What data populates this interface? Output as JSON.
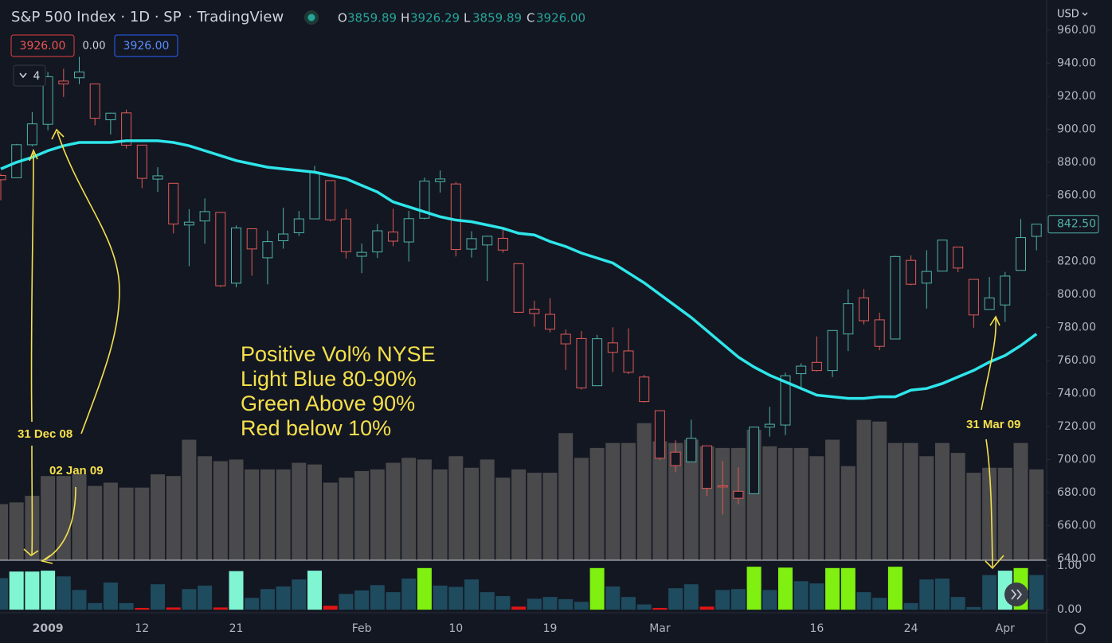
{
  "header": {
    "title": "S&P 500 Index · 1D · SP",
    "source": "· TradingView",
    "ohlc": [
      {
        "label": "O",
        "value": "3859.89"
      },
      {
        "label": "H",
        "value": "3926.29"
      },
      {
        "label": "L",
        "value": "3859.89"
      },
      {
        "label": "C",
        "value": "3926.00"
      }
    ],
    "inputs": [
      "3926.00",
      "0.00",
      "3926.00"
    ],
    "indicator_count": "4",
    "currency": "USD"
  },
  "chart_data": [
    {
      "type": "candlestick",
      "up_color": "#4fb3a8",
      "down_color": "#e05a57",
      "categories": [
        null,
        null,
        null,
        "2009",
        null,
        null,
        null,
        null,
        null,
        "12",
        null,
        null,
        null,
        null,
        null,
        "21",
        null,
        null,
        null,
        null,
        null,
        null,
        null,
        "Feb",
        null,
        null,
        null,
        null,
        null,
        "10",
        null,
        null,
        null,
        null,
        null,
        "19",
        null,
        null,
        null,
        null,
        null,
        null,
        "Mar",
        null,
        null,
        null,
        null,
        null,
        null,
        null,
        null,
        null,
        "16",
        null,
        null,
        null,
        null,
        null,
        "24",
        null,
        null,
        null,
        null,
        null,
        "Apr",
        null,
        null
      ],
      "open": [
        872,
        870.58,
        890.59,
        902.99,
        929.17,
        931.17,
        927.45,
        905.73,
        909.91,
        890.4,
        869.79,
        867.28,
        841.99,
        844.45,
        849.64,
        806.77,
        839.74,
        822.16,
        832.5,
        837.3,
        845.73,
        868.89,
        845.69,
        823.09,
        825.69,
        837.77,
        831.75,
        846.09,
        868.24,
        866.87,
        827.41,
        829.91,
        833.95,
        818.61,
        791.06,
        787.91,
        775.87,
        773.25,
        744.69,
        770.64,
        765.76,
        749.93,
        729.57,
        704.44,
        698.6,
        708.27,
        684.04,
        680.76,
        679.28,
        719.59,
        720.89,
        751.97,
        758.84,
        753.88,
        776.01,
        797.92,
        784.58,
        772.97,
        820.6,
        806.81,
        814.06,
        828.68,
        809.07,
        790.88,
        793.59,
        814.53,
        835.13
      ],
      "high": [
        873,
        891.12,
        910.32,
        934.73,
        936.63,
        943.85,
        927.45,
        910.0,
        911.93,
        890.4,
        877.02,
        867.28,
        851.59,
        858.13,
        849.64,
        841.72,
        839.74,
        838.61,
        852.53,
        850.45,
        877.86,
        868.89,
        851.66,
        830.78,
        842.6,
        851.85,
        850.55,
        870.75,
        875.01,
        868.05,
        838.22,
        835.48,
        839.43,
        818.61,
        796.17,
        797.58,
        778.69,
        777.85,
        775.49,
        780.12,
        779.42,
        751.27,
        729.57,
        711.67,
        724.12,
        708.27,
        699.09,
        695.27,
        719.6,
        731.92,
        752.63,
        758.29,
        774.53,
        778.12,
        803.04,
        803.24,
        788.91,
        823.37,
        823.65,
        826.78,
        832.98,
        828.68,
        809.07,
        810.48,
        813.62,
        845.61,
        842.5
      ],
      "low": [
        857,
        870.58,
        889.67,
        899.35,
        919.53,
        927.28,
        902.37,
        896.81,
        888.31,
        864.32,
        862.02,
        836.93,
        817.04,
        830.66,
        804.47,
        804.3,
        811.29,
        806.07,
        827.69,
        835.4,
        845.73,
        844.15,
        821.67,
        812.87,
        821.98,
        829.18,
        819.91,
        845.42,
        861.65,
        822.99,
        822.3,
        808.06,
        825.21,
        789.17,
        780.43,
        777.03,
        754.25,
        742.37,
        744.69,
        752.89,
        751.75,
        734.52,
        699.7,
        692.3,
        698.6,
        677.93,
        666.79,
        672.88,
        679.28,
        713.85,
        714.76,
        742.46,
        753.37,
        749.93,
        765.64,
        781.82,
        766.2,
        772.97,
        805.48,
        791.37,
        814.06,
        813.43,
        779.81,
        790.88,
        783.32,
        814.53,
        826.7
      ],
      "close": [
        869.42,
        890.64,
        903.25,
        931.8,
        927.45,
        934.7,
        906.65,
        909.73,
        890.35,
        870.26,
        871.79,
        842.62,
        843.74,
        850.12,
        805.22,
        840.24,
        827.5,
        831.95,
        836.57,
        845.71,
        874.09,
        845.14,
        825.88,
        825.44,
        838.51,
        832.23,
        845.85,
        868.6,
        869.89,
        827.16,
        833.74,
        835.19,
        826.84,
        789.17,
        788.42,
        778.94,
        770.05,
        743.33,
        773.14,
        764.9,
        752.83,
        735.09,
        700.82,
        696.33,
        712.87,
        682.55,
        683.38,
        676.53,
        719.6,
        721.36,
        750.74,
        756.55,
        753.89,
        778.12,
        794.35,
        784.04,
        768.54,
        822.92,
        806.12,
        813.88,
        832.86,
        815.94,
        787.53,
        797.87,
        811.08,
        834.38,
        842.5
      ],
      "ma": {
        "color": "#2ee6ea",
        "values": [
          876,
          880,
          883,
          887,
          890,
          892,
          892,
          892,
          893,
          893,
          893,
          892,
          890,
          887,
          884,
          881,
          879,
          877,
          876,
          875,
          874,
          872,
          870,
          866,
          862,
          856,
          853,
          850,
          847,
          845,
          844,
          842,
          840,
          837,
          836,
          832,
          829,
          825,
          822,
          819,
          813,
          807,
          800,
          793,
          786,
          778,
          770,
          762,
          756,
          751,
          747,
          743,
          739,
          738,
          737,
          737,
          738,
          738,
          742,
          743,
          746,
          750,
          754,
          759,
          763,
          769,
          776
        ]
      },
      "volume": {
        "color": "#4a4a4c",
        "values": [
          673,
          674,
          678,
          690,
          690,
          691,
          684,
          686,
          683,
          683,
          691,
          690,
          712,
          702,
          699,
          700,
          694,
          694,
          694,
          698,
          697,
          686,
          689,
          693,
          694,
          698,
          701,
          700,
          694,
          702,
          695,
          700,
          689,
          694,
          692,
          692,
          716,
          701,
          707,
          710,
          710,
          722,
          711,
          710,
          712,
          708,
          707,
          707,
          718,
          708,
          707,
          707,
          702,
          712,
          696,
          724,
          723,
          710,
          710,
          702,
          710,
          704,
          692,
          695,
          695,
          710,
          694
        ]
      },
      "ylim": [
        639,
        977.3
      ],
      "yticks": [
        {
          "value": 960,
          "label": "960.00"
        },
        {
          "value": 940,
          "label": "940.00"
        },
        {
          "value": 920,
          "label": "920.00"
        },
        {
          "value": 900,
          "label": "900.00"
        },
        {
          "value": 880,
          "label": "880.00"
        },
        {
          "value": 860,
          "label": "860.00"
        },
        {
          "value": 840,
          "label": "840.00"
        },
        {
          "value": 820,
          "label": "820.00"
        },
        {
          "value": 800,
          "label": "800.00"
        },
        {
          "value": 780,
          "label": "780.00"
        },
        {
          "value": 760,
          "label": "760.00"
        },
        {
          "value": 740,
          "label": "740.00"
        },
        {
          "value": 720,
          "label": "720.00"
        },
        {
          "value": 700,
          "label": "700.00"
        },
        {
          "value": 680,
          "label": "680.00"
        },
        {
          "value": 660,
          "label": "660.00"
        },
        {
          "value": 640,
          "label": "640.00"
        }
      ],
      "last_price": {
        "value": 842.5,
        "label": "842.50"
      },
      "annotations": [
        "Positive Vol% NYSE",
        "Light Blue 80-90%",
        "Green Above 90%",
        "Red below 10%"
      ],
      "date_notes": [
        "31 Dec 08",
        "02 Jan 09",
        "31 Mar 09"
      ]
    },
    {
      "type": "bar",
      "values": [
        0.72,
        0.87,
        0.87,
        0.89,
        0.76,
        0.45,
        0.15,
        0.62,
        0.15,
        0.04,
        0.58,
        0.05,
        0.47,
        0.55,
        0.05,
        0.88,
        0.27,
        0.47,
        0.53,
        0.69,
        0.89,
        0.09,
        0.36,
        0.44,
        0.56,
        0.4,
        0.71,
        0.95,
        0.55,
        0.52,
        0.69,
        0.4,
        0.31,
        0.07,
        0.25,
        0.29,
        0.24,
        0.18,
        0.95,
        0.53,
        0.29,
        0.12,
        0.04,
        0.49,
        0.58,
        0.07,
        0.45,
        0.47,
        0.98,
        0.45,
        0.96,
        0.65,
        0.6,
        0.95,
        0.95,
        0.4,
        0.27,
        0.98,
        0.15,
        0.69,
        0.71,
        0.29,
        0.06,
        0.79,
        0.89,
        0.95,
        0.79
      ],
      "colors": [
        "#1f4b5e",
        "#80f5d2",
        "#80f5d2",
        "#80f5d2",
        "#1f4b5e",
        "#1f4b5e",
        "#1f4b5e",
        "#1f4b5e",
        "#1f4b5e",
        "#e01515",
        "#1f4b5e",
        "#e01515",
        "#1f4b5e",
        "#1f4b5e",
        "#e01515",
        "#80f5d2",
        "#1f4b5e",
        "#1f4b5e",
        "#1f4b5e",
        "#1f4b5e",
        "#80f5d2",
        "#e01515",
        "#1f4b5e",
        "#1f4b5e",
        "#1f4b5e",
        "#1f4b5e",
        "#1f4b5e",
        "#80f010",
        "#1f4b5e",
        "#1f4b5e",
        "#1f4b5e",
        "#1f4b5e",
        "#1f4b5e",
        "#e01515",
        "#1f4b5e",
        "#1f4b5e",
        "#1f4b5e",
        "#1f4b5e",
        "#80f010",
        "#1f4b5e",
        "#1f4b5e",
        "#1f4b5e",
        "#e01515",
        "#1f4b5e",
        "#1f4b5e",
        "#e01515",
        "#1f4b5e",
        "#1f4b5e",
        "#80f010",
        "#1f4b5e",
        "#80f010",
        "#1f4b5e",
        "#1f4b5e",
        "#80f010",
        "#80f010",
        "#1f4b5e",
        "#1f4b5e",
        "#80f010",
        "#1f4b5e",
        "#1f4b5e",
        "#1f4b5e",
        "#1f4b5e",
        "#1f4b5e",
        "#1f4b5e",
        "#80f5d2",
        "#80f010",
        "#1f4b5e"
      ],
      "ylim": [
        -0.07,
        1.11
      ],
      "yticks": [
        {
          "value": 1,
          "label": "1.00"
        },
        {
          "value": 0,
          "label": "0.00"
        }
      ]
    }
  ]
}
